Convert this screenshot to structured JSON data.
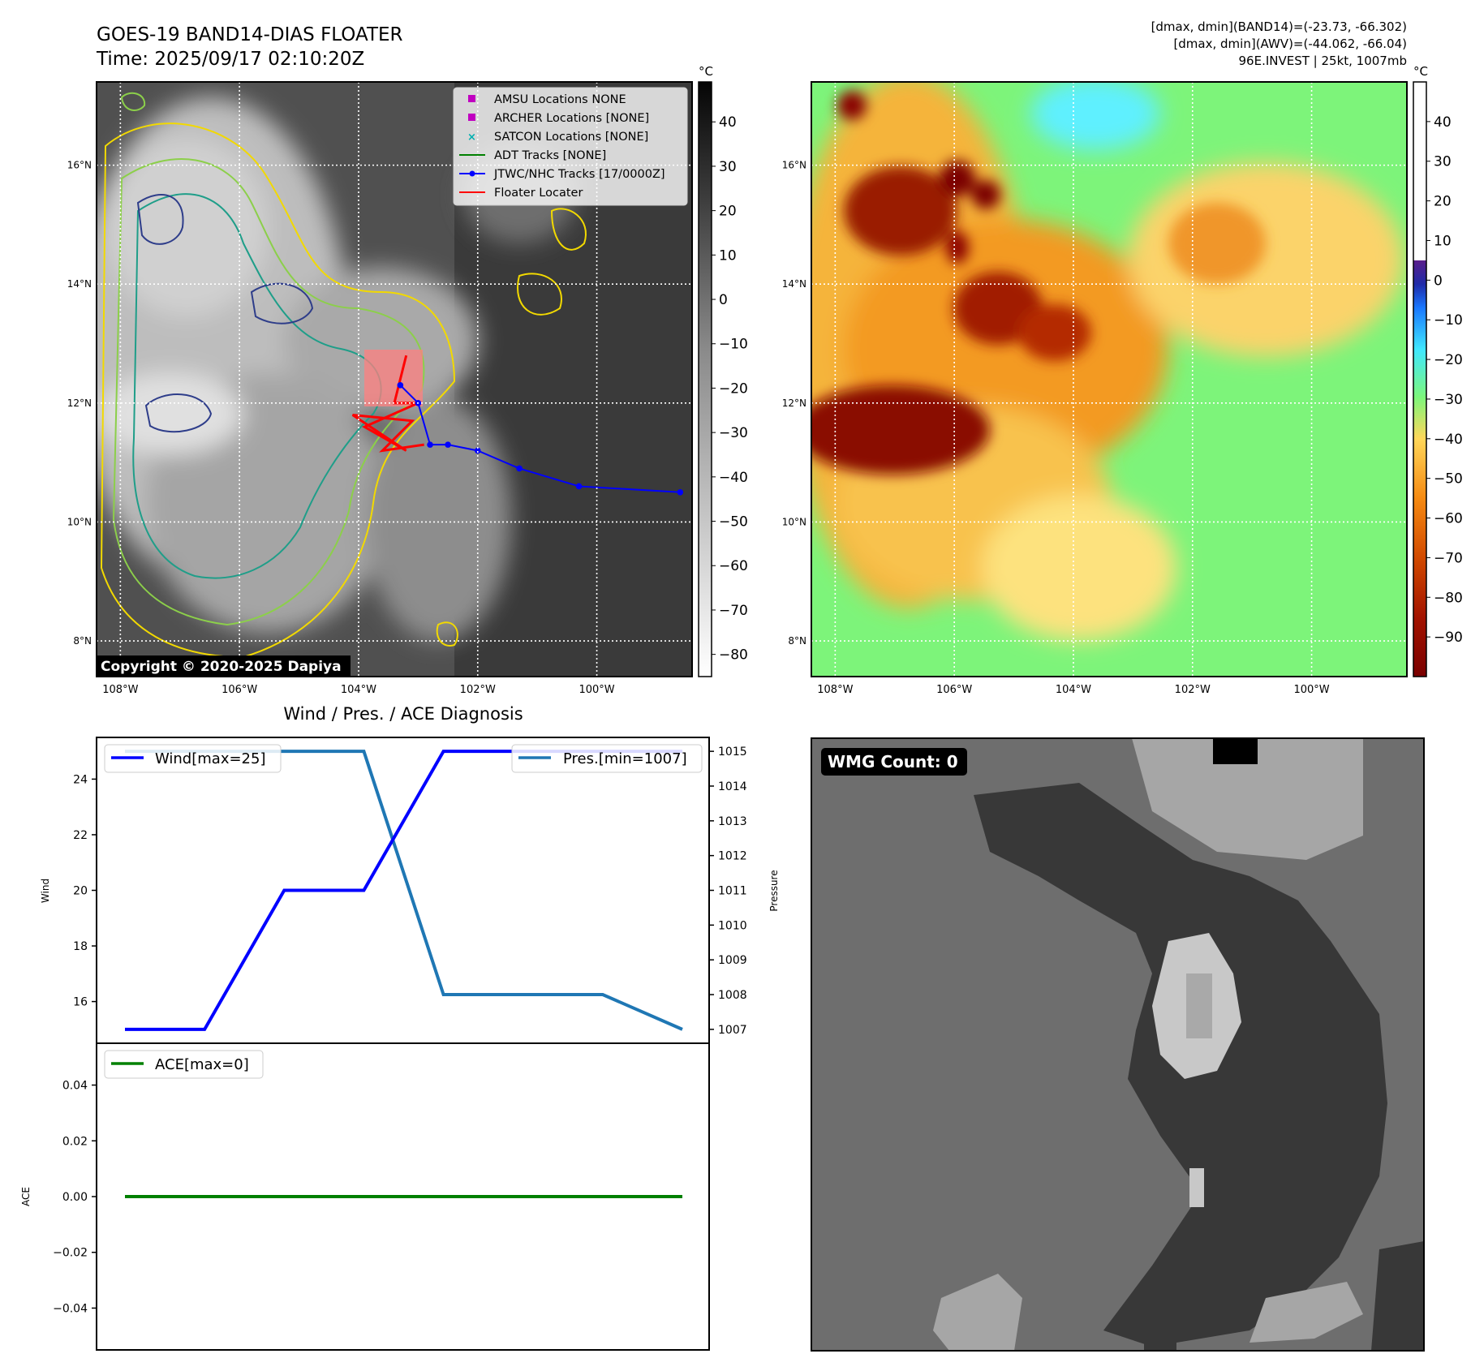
{
  "header": {
    "title": "GOES-19 BAND14-DIAS FLOATER",
    "time": "Time: 2025/09/17 02:10:20Z",
    "stats_band14": "[dmax, dmin](BAND14)=(-23.73, -66.302)",
    "stats_awv": "[dmax, dmin](AWV)=(-44.062, -66.04)",
    "storm_info": "96E.INVEST | 25kt, 1007mb"
  },
  "map_axes": {
    "lon_ticks": [
      "108°W",
      "106°W",
      "104°W",
      "102°W",
      "100°W"
    ],
    "lat_ticks": [
      "16°N",
      "14°N",
      "12°N",
      "10°N",
      "8°N"
    ],
    "lon_values": [
      -108,
      -106,
      -104,
      -102,
      -100
    ],
    "lat_values": [
      16,
      14,
      12,
      10,
      8
    ],
    "lon_range": [
      -108.4,
      -98.4
    ],
    "lat_range": [
      7.4,
      17.4
    ]
  },
  "ir_panel": {
    "legend": [
      {
        "label": "AMSU Locations NONE",
        "color": "#c000c0",
        "marker": "square"
      },
      {
        "label": "ARCHER Locations [NONE]",
        "color": "#c000c0",
        "marker": "square"
      },
      {
        "label": "SATCON Locations [NONE]",
        "color": "#00b0b0",
        "marker": "x"
      },
      {
        "label": "ADT Tracks [NONE]",
        "color": "#008000",
        "marker": "line"
      },
      {
        "label": "JTWC/NHC Tracks [17/0000Z]",
        "color": "#0000ff",
        "marker": "line-dot"
      },
      {
        "label": "Floater Locater",
        "color": "#ff0000",
        "marker": "line"
      }
    ],
    "copyright": "Copyright © 2020-2025 Dapiya",
    "colorbar_unit": "°C",
    "colorbar_ticks": [
      "40",
      "30",
      "20",
      "10",
      "0",
      "−10",
      "−20",
      "−30",
      "−40",
      "−50",
      "−60",
      "−70",
      "−80"
    ],
    "colorbar_values": [
      40,
      30,
      20,
      10,
      0,
      -10,
      -20,
      -30,
      -40,
      -50,
      -60,
      -70,
      -80
    ],
    "colorbar_range": [
      -85,
      49
    ],
    "jtwc_track": [
      {
        "lon": -98.6,
        "lat": 10.5
      },
      {
        "lon": -100.3,
        "lat": 10.6
      },
      {
        "lon": -101.3,
        "lat": 10.9
      },
      {
        "lon": -102.0,
        "lat": 11.2
      },
      {
        "lon": -102.5,
        "lat": 11.3
      },
      {
        "lon": -102.8,
        "lat": 11.3
      },
      {
        "lon": -103.0,
        "lat": 12.0
      },
      {
        "lon": -103.3,
        "lat": 12.3
      }
    ],
    "floater_path": [
      {
        "lon": -103.2,
        "lat": 12.8
      },
      {
        "lon": -103.4,
        "lat": 12.0
      },
      {
        "lon": -103.0,
        "lat": 12.0
      },
      {
        "lon": -103.9,
        "lat": 11.6
      },
      {
        "lon": -103.2,
        "lat": 11.2
      },
      {
        "lon": -104.1,
        "lat": 11.8
      },
      {
        "lon": -103.1,
        "lat": 11.7
      },
      {
        "lon": -103.6,
        "lat": 11.2
      },
      {
        "lon": -102.9,
        "lat": 11.3
      }
    ]
  },
  "awv_panel": {
    "colorbar_unit": "°C",
    "colorbar_ticks": [
      "40",
      "30",
      "20",
      "10",
      "0",
      "−10",
      "−20",
      "−30",
      "−40",
      "−50",
      "−60",
      "−70",
      "−80",
      "−90"
    ],
    "colorbar_values": [
      40,
      30,
      20,
      10,
      0,
      -10,
      -20,
      -30,
      -40,
      -50,
      -60,
      -70,
      -80,
      -90
    ],
    "colorbar_range": [
      -100,
      50
    ]
  },
  "diag_panel": {
    "title": "Wind / Pres. / ACE Diagnosis",
    "wind_legend": "Wind[max=25]",
    "pres_legend": "Pres.[min=1007]",
    "ace_legend": "ACE[max=0]",
    "wind_axis_label": "Wind",
    "pres_axis_label": "Pressure",
    "ace_axis_label": "ACE",
    "wind_ticks": [
      "24",
      "22",
      "20",
      "18",
      "16"
    ],
    "pres_ticks": [
      "1015",
      "1014",
      "1013",
      "1012",
      "1011",
      "1010",
      "1009",
      "1008",
      "1007"
    ],
    "ace_ticks": [
      "0.04",
      "0.02",
      "0.00",
      "−0.02",
      "−0.04"
    ]
  },
  "chart_data": [
    {
      "type": "line",
      "title": "Wind / Pres. / ACE Diagnosis",
      "x": [
        0,
        1,
        2,
        3,
        4,
        5,
        6,
        7
      ],
      "series": [
        {
          "name": "Wind[max=25]",
          "axis": "left",
          "color": "#0000ff",
          "values": [
            15,
            15,
            20,
            20,
            25,
            25,
            25,
            25
          ]
        },
        {
          "name": "Pres.[min=1007]",
          "axis": "right",
          "color": "#1f77b4",
          "values": [
            1015,
            1015,
            1015,
            1015,
            1008,
            1008,
            1008,
            1007
          ]
        }
      ],
      "ylabel": "Wind",
      "y2label": "Pressure",
      "ylim": [
        14.5,
        25.5
      ],
      "y2lim": [
        1006.6,
        1015.4
      ],
      "legend": "top-left / top-right",
      "grid": false
    },
    {
      "type": "line",
      "x": [
        0,
        1,
        2,
        3,
        4,
        5,
        6,
        7
      ],
      "series": [
        {
          "name": "ACE[max=0]",
          "color": "#008000",
          "values": [
            0,
            0,
            0,
            0,
            0,
            0,
            0,
            0
          ]
        }
      ],
      "ylabel": "ACE",
      "ylim": [
        -0.055,
        0.055
      ],
      "legend": "top-left",
      "grid": false
    }
  ],
  "wmg_panel": {
    "label": "WMG Count: 0"
  }
}
